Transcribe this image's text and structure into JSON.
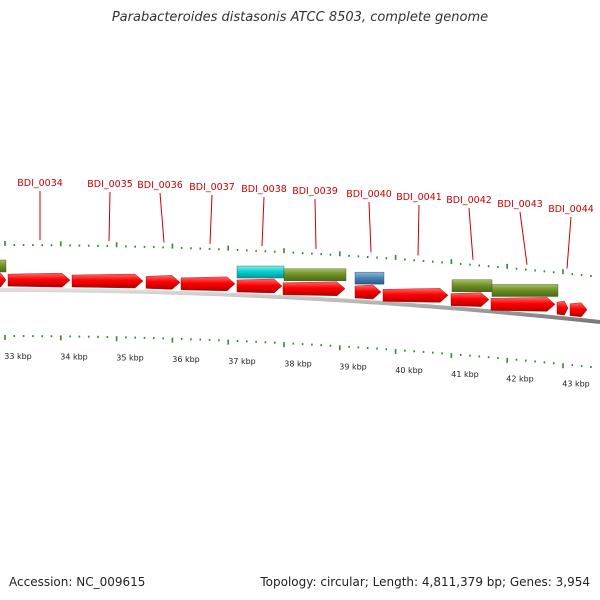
{
  "title": "Parabacteroides distasonis ATCC 8503, complete genome",
  "genes": [
    {
      "id": "BDI_0034"
    },
    {
      "id": "BDI_0035"
    },
    {
      "id": "BDI_0036"
    },
    {
      "id": "BDI_0037"
    },
    {
      "id": "BDI_0038"
    },
    {
      "id": "BDI_0039"
    },
    {
      "id": "BDI_0040"
    },
    {
      "id": "BDI_0041"
    },
    {
      "id": "BDI_0042"
    },
    {
      "id": "BDI_0043"
    },
    {
      "id": "BDI_0044"
    }
  ],
  "scale": {
    "ticks": [
      "33 kbp",
      "34 kbp",
      "35 kbp",
      "36 kbp",
      "37 kbp",
      "38 kbp",
      "39 kbp",
      "40 kbp",
      "41 kbp",
      "42 kbp",
      "43 kbp"
    ]
  },
  "colors": {
    "cds": "#ff0000",
    "label": "#cc0000",
    "feature_cyan": "#00cccc",
    "feature_olive": "#6b8e23",
    "feature_blue": "#4682b4",
    "backbone": "#888888",
    "ticks": "#2e8b2e"
  },
  "footer": {
    "accession": "Accession: NC_009615",
    "summary": "Topology: circular; Length: 4,811,379 bp; Genes: 3,954"
  }
}
